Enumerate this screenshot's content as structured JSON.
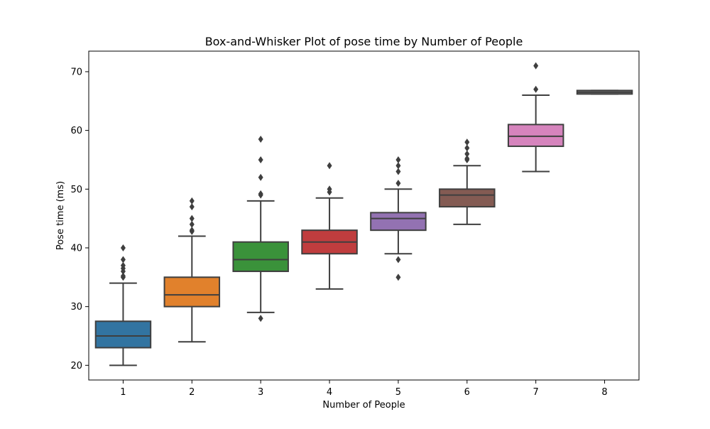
{
  "chart_data": {
    "type": "box",
    "title": "Box-and-Whisker Plot of pose time by Number of People",
    "xlabel": "Number of People",
    "ylabel": "Pose time (ms)",
    "ylim": [
      17.5,
      73.5
    ],
    "yticks": [
      20,
      30,
      40,
      50,
      60,
      70
    ],
    "grid": false,
    "categories": [
      "1",
      "2",
      "3",
      "4",
      "5",
      "6",
      "7",
      "8"
    ],
    "boxes": [
      {
        "category": "1",
        "color": "#3274a1",
        "whisker_low": 20,
        "q1": 23,
        "median": 25,
        "q3": 27.5,
        "whisker_high": 34,
        "outliers": [
          35,
          35.2,
          36,
          36.5,
          37,
          38,
          40
        ]
      },
      {
        "category": "2",
        "color": "#e1812c",
        "whisker_low": 24,
        "q1": 30,
        "median": 32,
        "q3": 35,
        "whisker_high": 42,
        "outliers": [
          42.8,
          43,
          44,
          45,
          47,
          48
        ]
      },
      {
        "category": "3",
        "color": "#3a923a",
        "whisker_low": 29,
        "q1": 36,
        "median": 38,
        "q3": 41,
        "whisker_high": 48,
        "outliers": [
          28,
          49,
          49.2,
          52,
          55,
          58.5
        ]
      },
      {
        "category": "4",
        "color": "#c03d3e",
        "whisker_low": 33,
        "q1": 39,
        "median": 41,
        "q3": 43,
        "whisker_high": 48.5,
        "outliers": [
          49.5,
          50,
          54
        ]
      },
      {
        "category": "5",
        "color": "#9372b2",
        "whisker_low": 39,
        "q1": 43,
        "median": 45,
        "q3": 46,
        "whisker_high": 50,
        "outliers": [
          35,
          38,
          51,
          53,
          54,
          55
        ]
      },
      {
        "category": "6",
        "color": "#845b53",
        "whisker_low": 44,
        "q1": 47,
        "median": 49,
        "q3": 50,
        "whisker_high": 54,
        "outliers": [
          55,
          55.2,
          56,
          57,
          58
        ]
      },
      {
        "category": "7",
        "color": "#d684bd",
        "whisker_low": 53,
        "q1": 57.3,
        "median": 59,
        "q3": 61,
        "whisker_high": 66,
        "outliers": [
          67,
          71
        ]
      },
      {
        "category": "8",
        "color": "#7f7f7f",
        "whisker_low": 66.2,
        "q1": 66.2,
        "median": 66.5,
        "q3": 66.8,
        "whisker_high": 66.8,
        "outliers": []
      }
    ]
  }
}
